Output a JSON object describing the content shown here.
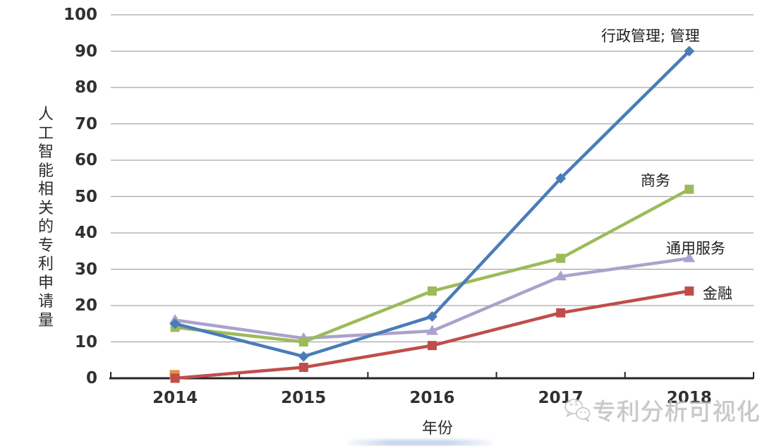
{
  "chart_data": {
    "type": "line",
    "title": "",
    "xlabel": "年份",
    "ylabel": "人工智能相关的专利申请量",
    "x": [
      "2014",
      "2015",
      "2016",
      "2017",
      "2018"
    ],
    "ylim": [
      0,
      100
    ],
    "yticks": [
      0,
      10,
      20,
      30,
      40,
      50,
      60,
      70,
      80,
      90,
      100
    ],
    "grid": true,
    "legend_position": "inline-end-of-line-labels",
    "series": [
      {
        "name": "行政管理; 管理",
        "color": "#4a7cb8",
        "marker": "diamond",
        "values": [
          15,
          6,
          17,
          55,
          90
        ]
      },
      {
        "name": "商务",
        "color": "#9bbb59",
        "marker": "square",
        "values": [
          14,
          10,
          24,
          33,
          52
        ]
      },
      {
        "name": "通用服务",
        "color": "#aaa2cb",
        "marker": "triangle",
        "values": [
          16,
          11,
          13,
          28,
          33
        ]
      },
      {
        "name": "金融",
        "color": "#bf4e4b",
        "marker": "square",
        "values": [
          0,
          3,
          9,
          18,
          24
        ]
      }
    ],
    "extra_marker": {
      "x": "2014",
      "value": 1,
      "color": "#e3914e",
      "shape": "square"
    }
  },
  "watermark": {
    "text": "专利分析可视化",
    "logo": "wechat-chat-bubbles-icon"
  },
  "style": {
    "gridline_color": "#a6a6a6",
    "axis_color": "#262626",
    "tick_text_color": "#303030"
  }
}
